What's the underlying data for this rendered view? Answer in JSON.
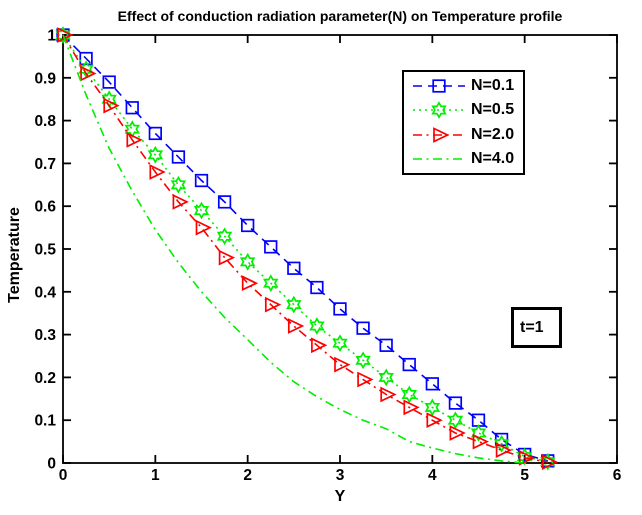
{
  "figure": {
    "background": "#ffffff",
    "axis_color": "#000000"
  },
  "chart_data": {
    "type": "line",
    "title": "Effect of conduction radiation parameter(N) on Temperature profile",
    "xlabel": "Y",
    "ylabel": "Temperature",
    "xlim": [
      0,
      6
    ],
    "ylim": [
      0,
      1
    ],
    "grid": false,
    "legend_position": "upper-right-inside",
    "xticks": {
      "values": [
        0,
        1,
        2,
        3,
        4,
        5,
        6
      ],
      "labels": [
        "0",
        "1",
        "2",
        "3",
        "4",
        "5",
        "6"
      ]
    },
    "yticks": {
      "values": [
        0,
        0.1,
        0.2,
        0.3,
        0.4,
        0.5,
        0.6,
        0.7,
        0.8,
        0.9,
        1
      ],
      "labels": [
        "0",
        "0.1",
        "0.2",
        "0.3",
        "0.4",
        "0.5",
        "0.6",
        "0.7",
        "0.8",
        "0.9",
        "1"
      ]
    },
    "annotation": {
      "text": "t=1"
    },
    "series": [
      {
        "label": "N=0.1",
        "color": "#0000ff",
        "line": "dashed",
        "marker": "square",
        "x": [
          0,
          0.25,
          0.5,
          0.75,
          1.0,
          1.25,
          1.5,
          1.75,
          2.0,
          2.25,
          2.5,
          2.75,
          3.0,
          3.25,
          3.5,
          3.75,
          4.0,
          4.25,
          4.5,
          4.75,
          5.0,
          5.25
        ],
        "y": [
          1.0,
          0.945,
          0.89,
          0.83,
          0.77,
          0.715,
          0.66,
          0.61,
          0.555,
          0.505,
          0.455,
          0.41,
          0.36,
          0.315,
          0.275,
          0.23,
          0.185,
          0.14,
          0.1,
          0.055,
          0.02,
          0.005
        ]
      },
      {
        "label": "N=0.5",
        "color": "#00ee00",
        "line": "dotted",
        "marker": "hexagram",
        "x": [
          0,
          0.25,
          0.5,
          0.75,
          1.0,
          1.25,
          1.5,
          1.75,
          2.0,
          2.25,
          2.5,
          2.75,
          3.0,
          3.25,
          3.5,
          3.75,
          4.0,
          4.25,
          4.5,
          4.75,
          5.0,
          5.25
        ],
        "y": [
          1.0,
          0.92,
          0.85,
          0.78,
          0.72,
          0.65,
          0.59,
          0.53,
          0.47,
          0.42,
          0.37,
          0.32,
          0.28,
          0.24,
          0.2,
          0.16,
          0.13,
          0.1,
          0.07,
          0.045,
          0.015,
          0.003
        ]
      },
      {
        "label": "N=2.0",
        "color": "#ff0000",
        "line": "dashdot",
        "marker": "triangle-right",
        "x": [
          0,
          0.25,
          0.5,
          0.75,
          1.0,
          1.25,
          1.5,
          1.75,
          2.0,
          2.25,
          2.5,
          2.75,
          3.0,
          3.25,
          3.5,
          3.75,
          4.0,
          4.25,
          4.5,
          4.75,
          5.0,
          5.25
        ],
        "y": [
          1.0,
          0.91,
          0.835,
          0.755,
          0.68,
          0.61,
          0.55,
          0.48,
          0.42,
          0.37,
          0.32,
          0.275,
          0.23,
          0.195,
          0.16,
          0.13,
          0.1,
          0.07,
          0.05,
          0.03,
          0.012,
          0.002
        ]
      },
      {
        "label": "N=4.0",
        "color": "#00ee00",
        "line": "dashdot",
        "marker": "none",
        "x": [
          0,
          0.25,
          0.5,
          0.75,
          1.0,
          1.25,
          1.5,
          1.75,
          2.0,
          2.25,
          2.5,
          2.75,
          3.0,
          3.25,
          3.5,
          3.75,
          4.0,
          4.25,
          4.5,
          4.75,
          5.0
        ],
        "y": [
          1.0,
          0.86,
          0.735,
          0.635,
          0.545,
          0.468,
          0.4,
          0.34,
          0.288,
          0.235,
          0.19,
          0.155,
          0.125,
          0.1,
          0.08,
          0.05,
          0.035,
          0.022,
          0.012,
          0.005,
          0.0
        ]
      }
    ]
  }
}
